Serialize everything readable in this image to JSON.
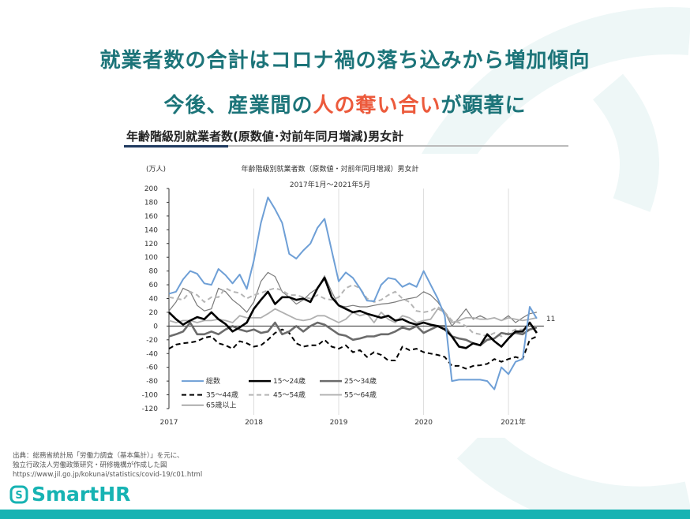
{
  "headline": {
    "line1": "就業者数の合計はコロナ禍の落ち込みから増加傾向",
    "line2_before": "今後、産業間の",
    "line2_highlight": "人の奪い合い",
    "line2_after": "が顕著に",
    "color_main": "#1c7479",
    "color_highlight": "#ec5a3c"
  },
  "section_title": "年齢階級別就業者数(原数値･対前年同月増減)男女計",
  "chart_data": {
    "type": "line",
    "title": "年齢階級別就業者数（原数値・対前年同月増減）男女計",
    "subtitle": "2017年1月～2021年5月",
    "ylabel": "(万人)",
    "ylim": [
      -120,
      200
    ],
    "yticks": [
      200,
      180,
      160,
      140,
      120,
      100,
      80,
      60,
      40,
      20,
      0,
      -20,
      -40,
      -60,
      -80,
      -100,
      -120
    ],
    "x_start": "2017-01",
    "x_end": "2021-05",
    "xtick_labels": [
      "2017",
      "2018",
      "2019",
      "2020",
      "2021年"
    ],
    "grid": "vertical at year boundaries",
    "legend": "bottom-left inside",
    "end_label": "11",
    "series": [
      {
        "name": "総数",
        "color": "#6e9fd6",
        "style": "solid",
        "values": [
          47,
          50,
          68,
          80,
          76,
          62,
          60,
          83,
          74,
          62,
          75,
          54,
          95,
          150,
          187,
          170,
          150,
          105,
          98,
          110,
          120,
          143,
          156,
          110,
          65,
          78,
          70,
          55,
          37,
          36,
          60,
          70,
          68,
          57,
          62,
          57,
          80,
          60,
          40,
          15,
          -80,
          -78,
          -78,
          -78,
          -78,
          -80,
          -92,
          -60,
          -70,
          -52,
          -48,
          28,
          11
        ]
      },
      {
        "name": "15～24歳",
        "color": "#000000",
        "style": "thick",
        "values": [
          20,
          10,
          2,
          8,
          13,
          10,
          20,
          10,
          3,
          -8,
          -2,
          5,
          25,
          38,
          50,
          32,
          42,
          42,
          38,
          40,
          35,
          55,
          70,
          42,
          30,
          25,
          20,
          22,
          18,
          15,
          12,
          15,
          8,
          10,
          5,
          2,
          5,
          2,
          0,
          -5,
          -15,
          -30,
          -32,
          -25,
          -28,
          -12,
          -22,
          -30,
          -18,
          -8,
          -8,
          5,
          -10
        ]
      },
      {
        "name": "25～34歳",
        "color": "#6b6b6b",
        "style": "thick",
        "values": [
          -15,
          -12,
          -8,
          5,
          -12,
          -12,
          -8,
          -12,
          -5,
          0,
          -5,
          -8,
          -5,
          -10,
          -8,
          5,
          -12,
          -8,
          0,
          -8,
          0,
          5,
          2,
          -5,
          -12,
          -14,
          -20,
          -18,
          -15,
          -15,
          -12,
          -12,
          -8,
          -2,
          -5,
          0,
          -10,
          -5,
          0,
          0,
          -15,
          -18,
          -20,
          -25,
          -28,
          -20,
          -18,
          -10,
          -12,
          -10,
          -12,
          -5,
          -2
        ]
      },
      {
        "name": "35～44歳",
        "color": "#000000",
        "style": "dashed",
        "values": [
          -33,
          -27,
          -25,
          -24,
          -22,
          -17,
          -15,
          -25,
          -28,
          -33,
          -22,
          -25,
          -30,
          -28,
          -20,
          -10,
          -5,
          -10,
          -25,
          -30,
          -28,
          -28,
          -20,
          -30,
          -33,
          -28,
          -38,
          -35,
          -45,
          -38,
          -42,
          -50,
          -50,
          -30,
          -35,
          -33,
          -38,
          -40,
          -42,
          -45,
          -58,
          -58,
          -62,
          -58,
          -57,
          -55,
          -48,
          -52,
          -48,
          -45,
          -48,
          -20,
          -15
        ]
      },
      {
        "name": "45～54歳",
        "color": "#b5b5b5",
        "style": "lightdashed",
        "values": [
          42,
          40,
          38,
          50,
          45,
          35,
          42,
          42,
          55,
          50,
          48,
          40,
          45,
          48,
          52,
          55,
          52,
          45,
          45,
          42,
          40,
          45,
          40,
          38,
          42,
          55,
          60,
          55,
          40,
          35,
          38,
          45,
          50,
          40,
          35,
          22,
          20,
          22,
          28,
          20,
          8,
          5,
          0,
          -10,
          -12,
          -15,
          -10,
          -15,
          -10,
          -5,
          -5,
          -5,
          0
        ]
      },
      {
        "name": "55～64歳",
        "color": "#b0b0b0",
        "style": "thin",
        "values": [
          8,
          5,
          8,
          8,
          5,
          8,
          8,
          10,
          8,
          5,
          15,
          12,
          12,
          12,
          18,
          25,
          20,
          15,
          10,
          8,
          10,
          15,
          15,
          10,
          5,
          10,
          20,
          15,
          18,
          5,
          20,
          10,
          5,
          15,
          12,
          5,
          8,
          10,
          25,
          20,
          5,
          8,
          12,
          12,
          10,
          10,
          12,
          8,
          12,
          10,
          8,
          10,
          12
        ]
      },
      {
        "name": "65歳以上",
        "color": "#7a7a7a",
        "style": "thinner",
        "values": [
          22,
          35,
          55,
          50,
          30,
          22,
          25,
          55,
          50,
          38,
          30,
          20,
          35,
          65,
          78,
          72,
          50,
          42,
          32,
          38,
          48,
          55,
          73,
          50,
          30,
          28,
          30,
          28,
          28,
          30,
          32,
          33,
          35,
          38,
          40,
          42,
          50,
          45,
          35,
          20,
          0,
          12,
          25,
          10,
          15,
          10,
          12,
          8,
          15,
          5,
          12,
          18,
          20
        ]
      }
    ]
  },
  "source": {
    "line1": "出典：総務省統計局「労働力調査（基本集計）」を元に、",
    "line2": "独立行政法人労働政策研究・研修機構が作成した図",
    "line3": "https://www.jil.go.jp/kokunai/statistics/covid-19/c01.html"
  },
  "logo": {
    "text": "SmartHR",
    "color": "#17b3b3"
  }
}
